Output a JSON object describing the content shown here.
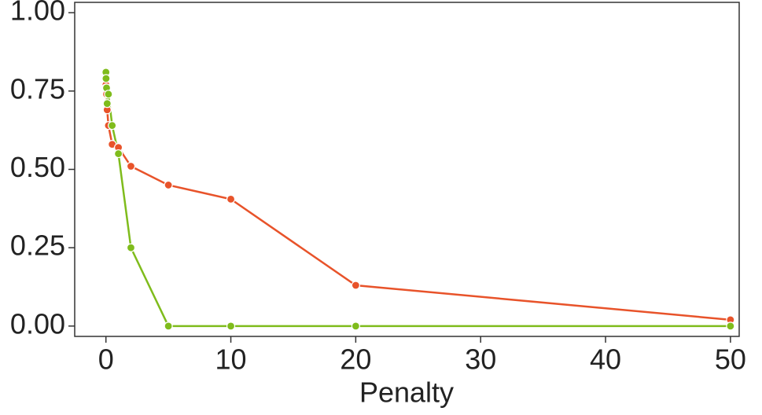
{
  "chart_data": {
    "type": "line",
    "xlabel": "Penalty",
    "x": [
      0,
      0.01,
      0.05,
      0.1,
      0.2,
      0.5,
      1,
      2,
      5,
      10,
      20,
      50
    ],
    "series": [
      {
        "color": "#e8532a",
        "values": [
          0.77,
          0.76,
          0.74,
          0.69,
          0.64,
          0.58,
          0.57,
          0.51,
          0.45,
          0.405,
          0.13,
          0.02
        ]
      },
      {
        "color": "#7fbc1c",
        "values": [
          0.81,
          0.79,
          0.76,
          0.71,
          0.74,
          0.64,
          0.55,
          0.25,
          0,
          0,
          0,
          0
        ]
      }
    ],
    "xlim": [
      -2.5,
      50.7
    ],
    "ylim": [
      -0.033,
      1.033
    ],
    "xticks": [
      0,
      10,
      20,
      30,
      40,
      50
    ],
    "yticks": [
      {
        "value": 0,
        "label": "0.00"
      },
      {
        "value": 0.25,
        "label": "0.25"
      },
      {
        "value": 0.5,
        "label": "0.50"
      },
      {
        "value": 0.75,
        "label": "0.75"
      },
      {
        "value": 1,
        "label": "1.00"
      }
    ],
    "grid": false
  }
}
